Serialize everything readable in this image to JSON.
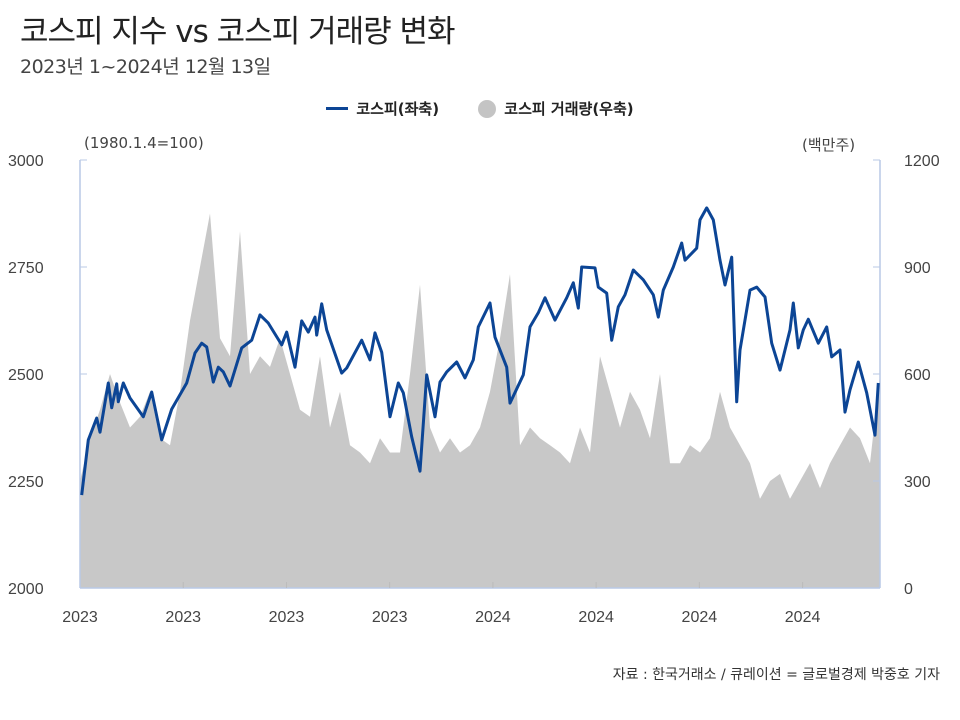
{
  "header": {
    "title": "코스피 지수 vs 코스피 거래량 변화",
    "subtitle": "2023년 1~2024년 12월 13일"
  },
  "source": "자료 : 한국거래소 / 큐레이션 = 글로벌경제 박중호 기자",
  "chart_data": {
    "type": "line+area",
    "legend": [
      "코스피(좌축)",
      "코스피 거래량(우축)"
    ],
    "legend_placement": "top-center",
    "left_unit": "(1980.1.4=100)",
    "right_unit": "(백만주)",
    "left_ylim": [
      2000,
      3000
    ],
    "right_ylim": [
      0,
      1200
    ],
    "left_ticks": [
      "3000",
      "2750",
      "2500",
      "2250",
      "2000"
    ],
    "right_ticks": [
      "1200",
      "900",
      "600",
      "300",
      "0"
    ],
    "x_tick_labels": [
      "2023",
      "2023",
      "2023",
      "2023",
      "2024",
      "2024",
      "2024",
      "2024"
    ],
    "x_range_trading_days": [
      0,
      480
    ],
    "colors": {
      "kospi": "#0c4595",
      "volume": "#c8c8c8",
      "axis": "#b9c9e6"
    },
    "series": [
      {
        "name": "코스피(좌축)",
        "t": [
          1,
          5,
          10,
          12,
          17,
          19,
          22,
          23,
          26,
          30,
          38,
          43,
          49,
          55,
          64,
          69,
          73,
          76,
          80,
          83,
          86,
          90,
          97,
          103,
          108,
          113,
          121,
          124,
          129,
          133,
          137,
          141,
          142,
          145,
          148,
          157,
          160,
          169,
          174,
          177,
          181,
          186,
          191,
          194,
          199,
          204,
          208,
          213,
          216,
          220,
          226,
          231,
          236,
          239,
          246,
          249,
          256,
          258,
          266,
          270,
          275,
          279,
          285,
          292,
          296,
          299,
          301,
          309,
          311,
          316,
          319,
          323,
          327,
          332,
          338,
          344,
          347,
          350,
          356,
          361,
          363,
          370,
          372,
          376,
          380,
          384,
          387,
          391,
          394,
          396,
          402,
          406,
          411,
          415,
          420,
          426,
          428,
          431,
          434,
          437,
          443,
          448,
          451,
          456,
          459,
          462,
          467,
          472,
          477,
          479
        ],
        "values": [
          2217,
          2346,
          2397,
          2364,
          2479,
          2421,
          2477,
          2435,
          2479,
          2444,
          2400,
          2458,
          2346,
          2418,
          2479,
          2549,
          2572,
          2563,
          2481,
          2516,
          2505,
          2472,
          2561,
          2579,
          2638,
          2619,
          2568,
          2598,
          2516,
          2624,
          2598,
          2633,
          2591,
          2664,
          2603,
          2502,
          2514,
          2579,
          2533,
          2596,
          2551,
          2400,
          2479,
          2456,
          2353,
          2273,
          2498,
          2400,
          2481,
          2505,
          2528,
          2491,
          2533,
          2610,
          2666,
          2586,
          2516,
          2432,
          2498,
          2610,
          2643,
          2678,
          2626,
          2678,
          2713,
          2654,
          2750,
          2748,
          2703,
          2689,
          2579,
          2657,
          2685,
          2743,
          2720,
          2685,
          2633,
          2696,
          2750,
          2806,
          2766,
          2794,
          2860,
          2888,
          2860,
          2766,
          2708,
          2773,
          2435,
          2556,
          2696,
          2703,
          2680,
          2572,
          2509,
          2603,
          2666,
          2561,
          2603,
          2628,
          2572,
          2610,
          2540,
          2556,
          2411,
          2463,
          2528,
          2456,
          2357,
          2479
        ]
      },
      {
        "name": "코스피 거래량(우축)",
        "t_start": 0,
        "t_step": 6,
        "values": [
          300,
          420,
          500,
          600,
          520,
          450,
          480,
          550,
          420,
          400,
          550,
          750,
          900,
          1050,
          700,
          650,
          1000,
          600,
          650,
          620,
          700,
          600,
          500,
          480,
          650,
          450,
          550,
          400,
          380,
          350,
          420,
          380,
          380,
          600,
          850,
          450,
          380,
          420,
          380,
          400,
          450,
          550,
          700,
          880,
          400,
          450,
          420,
          400,
          380,
          350,
          450,
          380,
          650,
          550,
          450,
          550,
          500,
          420,
          600,
          350,
          350,
          400,
          380,
          420,
          550,
          450,
          400,
          350,
          250,
          300,
          320,
          250,
          300,
          350,
          280,
          350,
          400,
          450,
          420,
          350,
          600
        ]
      }
    ]
  }
}
